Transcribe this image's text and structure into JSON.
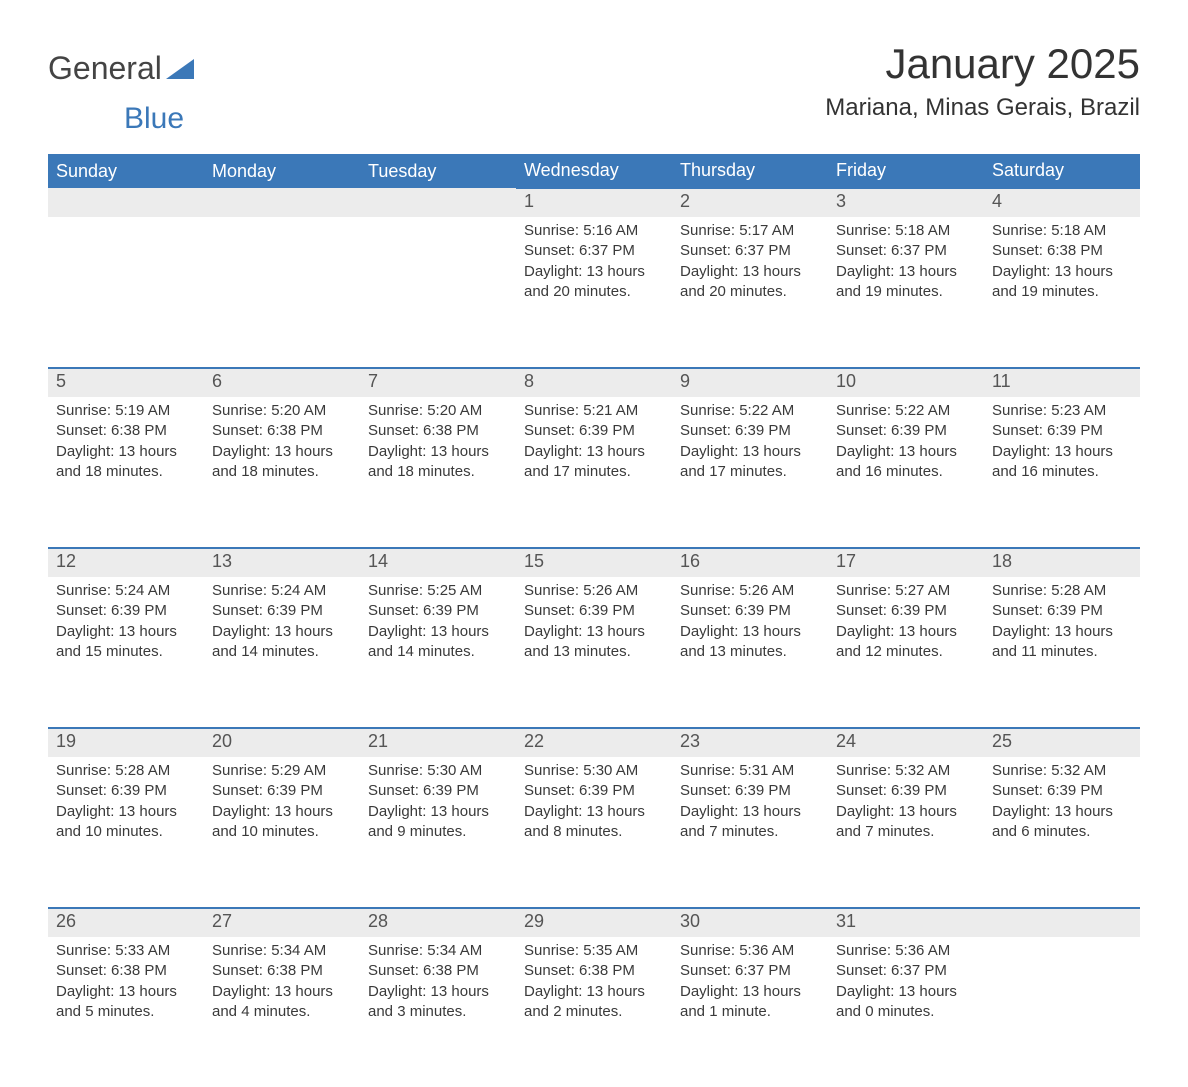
{
  "brand": {
    "part1": "General",
    "part2": "Blue"
  },
  "title": "January 2025",
  "subtitle": "Mariana, Minas Gerais, Brazil",
  "style": {
    "header_bg": "#3b78b8",
    "header_text": "#ffffff",
    "daynum_bg": "#ececec",
    "row_divider": "#3b78b8",
    "body_text": "#3a3a3a",
    "title_fontsize": 42,
    "subtitle_fontsize": 24,
    "dayheader_fontsize": 18,
    "cell_fontsize": 15,
    "page_bg": "#ffffff"
  },
  "day_headers": [
    "Sunday",
    "Monday",
    "Tuesday",
    "Wednesday",
    "Thursday",
    "Friday",
    "Saturday"
  ],
  "weeks": [
    [
      null,
      null,
      null,
      {
        "n": "1",
        "sunrise": "Sunrise: 5:16 AM",
        "sunset": "Sunset: 6:37 PM",
        "d1": "Daylight: 13 hours",
        "d2": "and 20 minutes."
      },
      {
        "n": "2",
        "sunrise": "Sunrise: 5:17 AM",
        "sunset": "Sunset: 6:37 PM",
        "d1": "Daylight: 13 hours",
        "d2": "and 20 minutes."
      },
      {
        "n": "3",
        "sunrise": "Sunrise: 5:18 AM",
        "sunset": "Sunset: 6:37 PM",
        "d1": "Daylight: 13 hours",
        "d2": "and 19 minutes."
      },
      {
        "n": "4",
        "sunrise": "Sunrise: 5:18 AM",
        "sunset": "Sunset: 6:38 PM",
        "d1": "Daylight: 13 hours",
        "d2": "and 19 minutes."
      }
    ],
    [
      {
        "n": "5",
        "sunrise": "Sunrise: 5:19 AM",
        "sunset": "Sunset: 6:38 PM",
        "d1": "Daylight: 13 hours",
        "d2": "and 18 minutes."
      },
      {
        "n": "6",
        "sunrise": "Sunrise: 5:20 AM",
        "sunset": "Sunset: 6:38 PM",
        "d1": "Daylight: 13 hours",
        "d2": "and 18 minutes."
      },
      {
        "n": "7",
        "sunrise": "Sunrise: 5:20 AM",
        "sunset": "Sunset: 6:38 PM",
        "d1": "Daylight: 13 hours",
        "d2": "and 18 minutes."
      },
      {
        "n": "8",
        "sunrise": "Sunrise: 5:21 AM",
        "sunset": "Sunset: 6:39 PM",
        "d1": "Daylight: 13 hours",
        "d2": "and 17 minutes."
      },
      {
        "n": "9",
        "sunrise": "Sunrise: 5:22 AM",
        "sunset": "Sunset: 6:39 PM",
        "d1": "Daylight: 13 hours",
        "d2": "and 17 minutes."
      },
      {
        "n": "10",
        "sunrise": "Sunrise: 5:22 AM",
        "sunset": "Sunset: 6:39 PM",
        "d1": "Daylight: 13 hours",
        "d2": "and 16 minutes."
      },
      {
        "n": "11",
        "sunrise": "Sunrise: 5:23 AM",
        "sunset": "Sunset: 6:39 PM",
        "d1": "Daylight: 13 hours",
        "d2": "and 16 minutes."
      }
    ],
    [
      {
        "n": "12",
        "sunrise": "Sunrise: 5:24 AM",
        "sunset": "Sunset: 6:39 PM",
        "d1": "Daylight: 13 hours",
        "d2": "and 15 minutes."
      },
      {
        "n": "13",
        "sunrise": "Sunrise: 5:24 AM",
        "sunset": "Sunset: 6:39 PM",
        "d1": "Daylight: 13 hours",
        "d2": "and 14 minutes."
      },
      {
        "n": "14",
        "sunrise": "Sunrise: 5:25 AM",
        "sunset": "Sunset: 6:39 PM",
        "d1": "Daylight: 13 hours",
        "d2": "and 14 minutes."
      },
      {
        "n": "15",
        "sunrise": "Sunrise: 5:26 AM",
        "sunset": "Sunset: 6:39 PM",
        "d1": "Daylight: 13 hours",
        "d2": "and 13 minutes."
      },
      {
        "n": "16",
        "sunrise": "Sunrise: 5:26 AM",
        "sunset": "Sunset: 6:39 PM",
        "d1": "Daylight: 13 hours",
        "d2": "and 13 minutes."
      },
      {
        "n": "17",
        "sunrise": "Sunrise: 5:27 AM",
        "sunset": "Sunset: 6:39 PM",
        "d1": "Daylight: 13 hours",
        "d2": "and 12 minutes."
      },
      {
        "n": "18",
        "sunrise": "Sunrise: 5:28 AM",
        "sunset": "Sunset: 6:39 PM",
        "d1": "Daylight: 13 hours",
        "d2": "and 11 minutes."
      }
    ],
    [
      {
        "n": "19",
        "sunrise": "Sunrise: 5:28 AM",
        "sunset": "Sunset: 6:39 PM",
        "d1": "Daylight: 13 hours",
        "d2": "and 10 minutes."
      },
      {
        "n": "20",
        "sunrise": "Sunrise: 5:29 AM",
        "sunset": "Sunset: 6:39 PM",
        "d1": "Daylight: 13 hours",
        "d2": "and 10 minutes."
      },
      {
        "n": "21",
        "sunrise": "Sunrise: 5:30 AM",
        "sunset": "Sunset: 6:39 PM",
        "d1": "Daylight: 13 hours",
        "d2": "and 9 minutes."
      },
      {
        "n": "22",
        "sunrise": "Sunrise: 5:30 AM",
        "sunset": "Sunset: 6:39 PM",
        "d1": "Daylight: 13 hours",
        "d2": "and 8 minutes."
      },
      {
        "n": "23",
        "sunrise": "Sunrise: 5:31 AM",
        "sunset": "Sunset: 6:39 PM",
        "d1": "Daylight: 13 hours",
        "d2": "and 7 minutes."
      },
      {
        "n": "24",
        "sunrise": "Sunrise: 5:32 AM",
        "sunset": "Sunset: 6:39 PM",
        "d1": "Daylight: 13 hours",
        "d2": "and 7 minutes."
      },
      {
        "n": "25",
        "sunrise": "Sunrise: 5:32 AM",
        "sunset": "Sunset: 6:39 PM",
        "d1": "Daylight: 13 hours",
        "d2": "and 6 minutes."
      }
    ],
    [
      {
        "n": "26",
        "sunrise": "Sunrise: 5:33 AM",
        "sunset": "Sunset: 6:38 PM",
        "d1": "Daylight: 13 hours",
        "d2": "and 5 minutes."
      },
      {
        "n": "27",
        "sunrise": "Sunrise: 5:34 AM",
        "sunset": "Sunset: 6:38 PM",
        "d1": "Daylight: 13 hours",
        "d2": "and 4 minutes."
      },
      {
        "n": "28",
        "sunrise": "Sunrise: 5:34 AM",
        "sunset": "Sunset: 6:38 PM",
        "d1": "Daylight: 13 hours",
        "d2": "and 3 minutes."
      },
      {
        "n": "29",
        "sunrise": "Sunrise: 5:35 AM",
        "sunset": "Sunset: 6:38 PM",
        "d1": "Daylight: 13 hours",
        "d2": "and 2 minutes."
      },
      {
        "n": "30",
        "sunrise": "Sunrise: 5:36 AM",
        "sunset": "Sunset: 6:37 PM",
        "d1": "Daylight: 13 hours",
        "d2": "and 1 minute."
      },
      {
        "n": "31",
        "sunrise": "Sunrise: 5:36 AM",
        "sunset": "Sunset: 6:37 PM",
        "d1": "Daylight: 13 hours",
        "d2": "and 0 minutes."
      },
      null
    ]
  ]
}
